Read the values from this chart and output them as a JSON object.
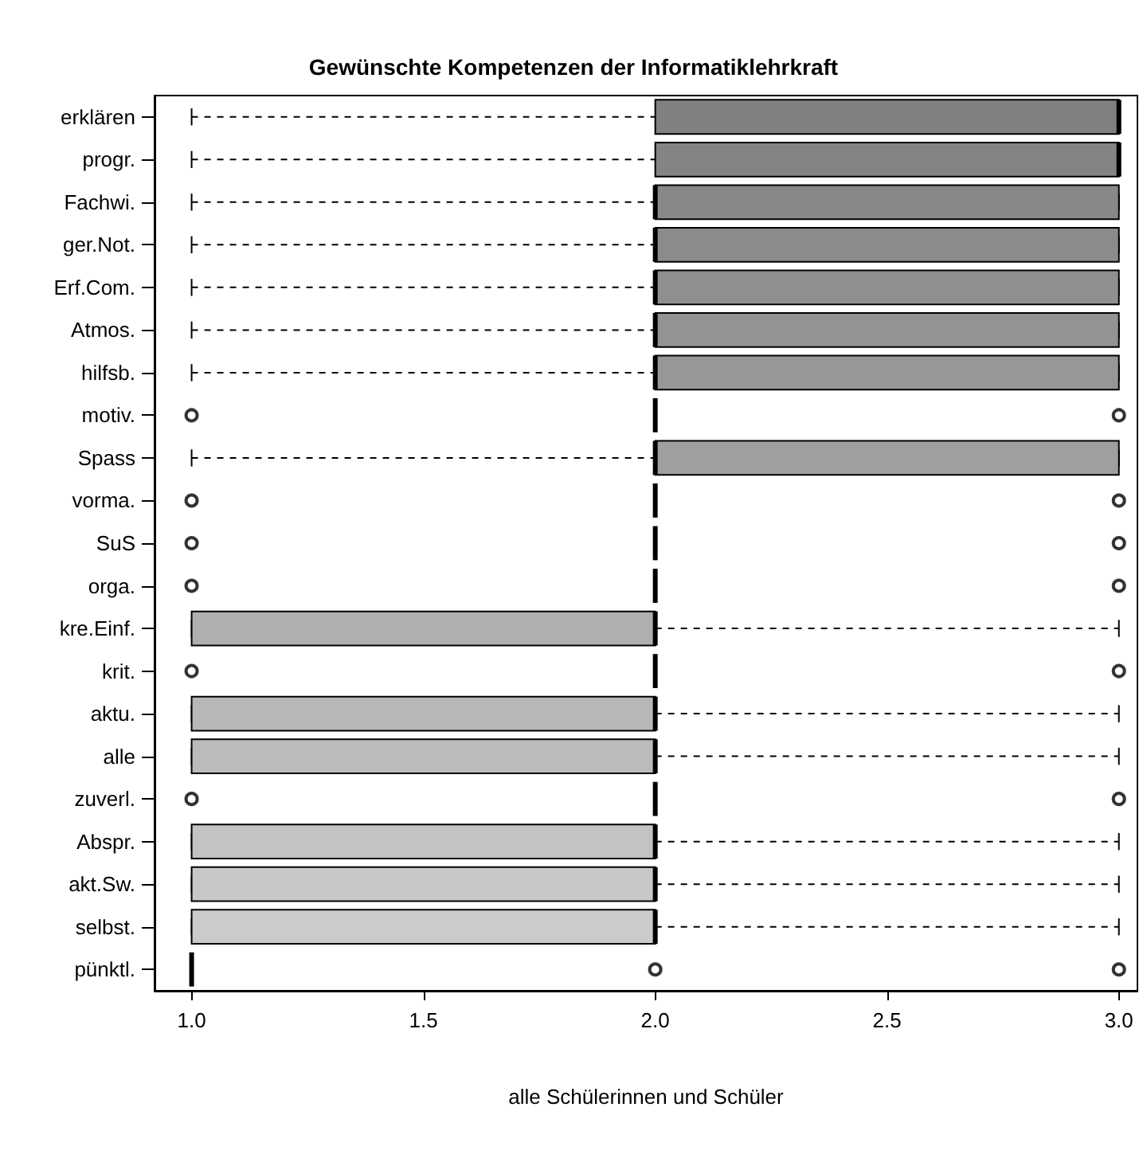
{
  "chart_data": {
    "type": "box",
    "orientation": "horizontal",
    "title": "Gewünschte Kompetenzen der Informatiklehrkraft",
    "xlabel": "alle Schülerinnen und Schüler",
    "categories": [
      "erklären",
      "progr.",
      "Fachwi.",
      "ger.Not.",
      "Erf.Com.",
      "Atmos.",
      "hilfsb.",
      "motiv.",
      "Spass",
      "vorma.",
      "SuS",
      "orga.",
      "kre.Einf.",
      "krit.",
      "aktu.",
      "alle",
      "zuverl.",
      "Abspr.",
      "akt.Sw.",
      "selbst.",
      "pünktl."
    ],
    "colors": [
      "#808080",
      "#848484",
      "#888888",
      "#8b8b8b",
      "#8f8f8f",
      "#939393",
      "#979797",
      null,
      "#9f9f9f",
      null,
      null,
      null,
      "#afafaf",
      null,
      "#b7b7b7",
      "#bbbbbb",
      null,
      "#c3c3c3",
      "#c7c7c7",
      "#cbcbcb",
      null
    ],
    "boxes": [
      {
        "low": 1,
        "q1": 2,
        "median": 3,
        "q3": 3,
        "high": 3
      },
      {
        "low": 1,
        "q1": 2,
        "median": 3,
        "q3": 3,
        "high": 3
      },
      {
        "low": 1,
        "q1": 2,
        "median": 2,
        "q3": 3,
        "high": 3
      },
      {
        "low": 1,
        "q1": 2,
        "median": 2,
        "q3": 3,
        "high": 3
      },
      {
        "low": 1,
        "q1": 2,
        "median": 2,
        "q3": 3,
        "high": 3
      },
      {
        "low": 1,
        "q1": 2,
        "median": 2,
        "q3": 3,
        "high": 3
      },
      {
        "low": 1,
        "q1": 2,
        "median": 2,
        "q3": 3,
        "high": 3
      },
      {
        "low": 2,
        "q1": 2,
        "median": 2,
        "q3": 2,
        "high": 2,
        "outliers": [
          1,
          3
        ]
      },
      {
        "low": 1,
        "q1": 2,
        "median": 2,
        "q3": 3,
        "high": 3
      },
      {
        "low": 2,
        "q1": 2,
        "median": 2,
        "q3": 2,
        "high": 2,
        "outliers": [
          1,
          3
        ]
      },
      {
        "low": 2,
        "q1": 2,
        "median": 2,
        "q3": 2,
        "high": 2,
        "outliers": [
          1,
          3
        ]
      },
      {
        "low": 2,
        "q1": 2,
        "median": 2,
        "q3": 2,
        "high": 2,
        "outliers": [
          1,
          3
        ]
      },
      {
        "low": 1,
        "q1": 1,
        "median": 2,
        "q3": 2,
        "high": 3
      },
      {
        "low": 2,
        "q1": 2,
        "median": 2,
        "q3": 2,
        "high": 2,
        "outliers": [
          1,
          3
        ]
      },
      {
        "low": 1,
        "q1": 1,
        "median": 2,
        "q3": 2,
        "high": 3
      },
      {
        "low": 1,
        "q1": 1,
        "median": 2,
        "q3": 2,
        "high": 3
      },
      {
        "low": 2,
        "q1": 2,
        "median": 2,
        "q3": 2,
        "high": 2,
        "outliers": [
          1,
          3
        ]
      },
      {
        "low": 1,
        "q1": 1,
        "median": 2,
        "q3": 2,
        "high": 3
      },
      {
        "low": 1,
        "q1": 1,
        "median": 2,
        "q3": 2,
        "high": 3
      },
      {
        "low": 1,
        "q1": 1,
        "median": 2,
        "q3": 2,
        "high": 3
      },
      {
        "low": 1,
        "q1": 1,
        "median": 1,
        "q3": 1,
        "high": 1,
        "outliers": [
          2,
          3
        ]
      }
    ],
    "xlim": [
      0.92,
      3.04
    ],
    "xticks": [
      {
        "value": 1,
        "label": "1.0"
      },
      {
        "value": 1.5,
        "label": "1.5"
      },
      {
        "value": 2,
        "label": "2.0"
      },
      {
        "value": 2.5,
        "label": "2.5"
      },
      {
        "value": 3,
        "label": "3.0"
      }
    ],
    "grid": false
  }
}
